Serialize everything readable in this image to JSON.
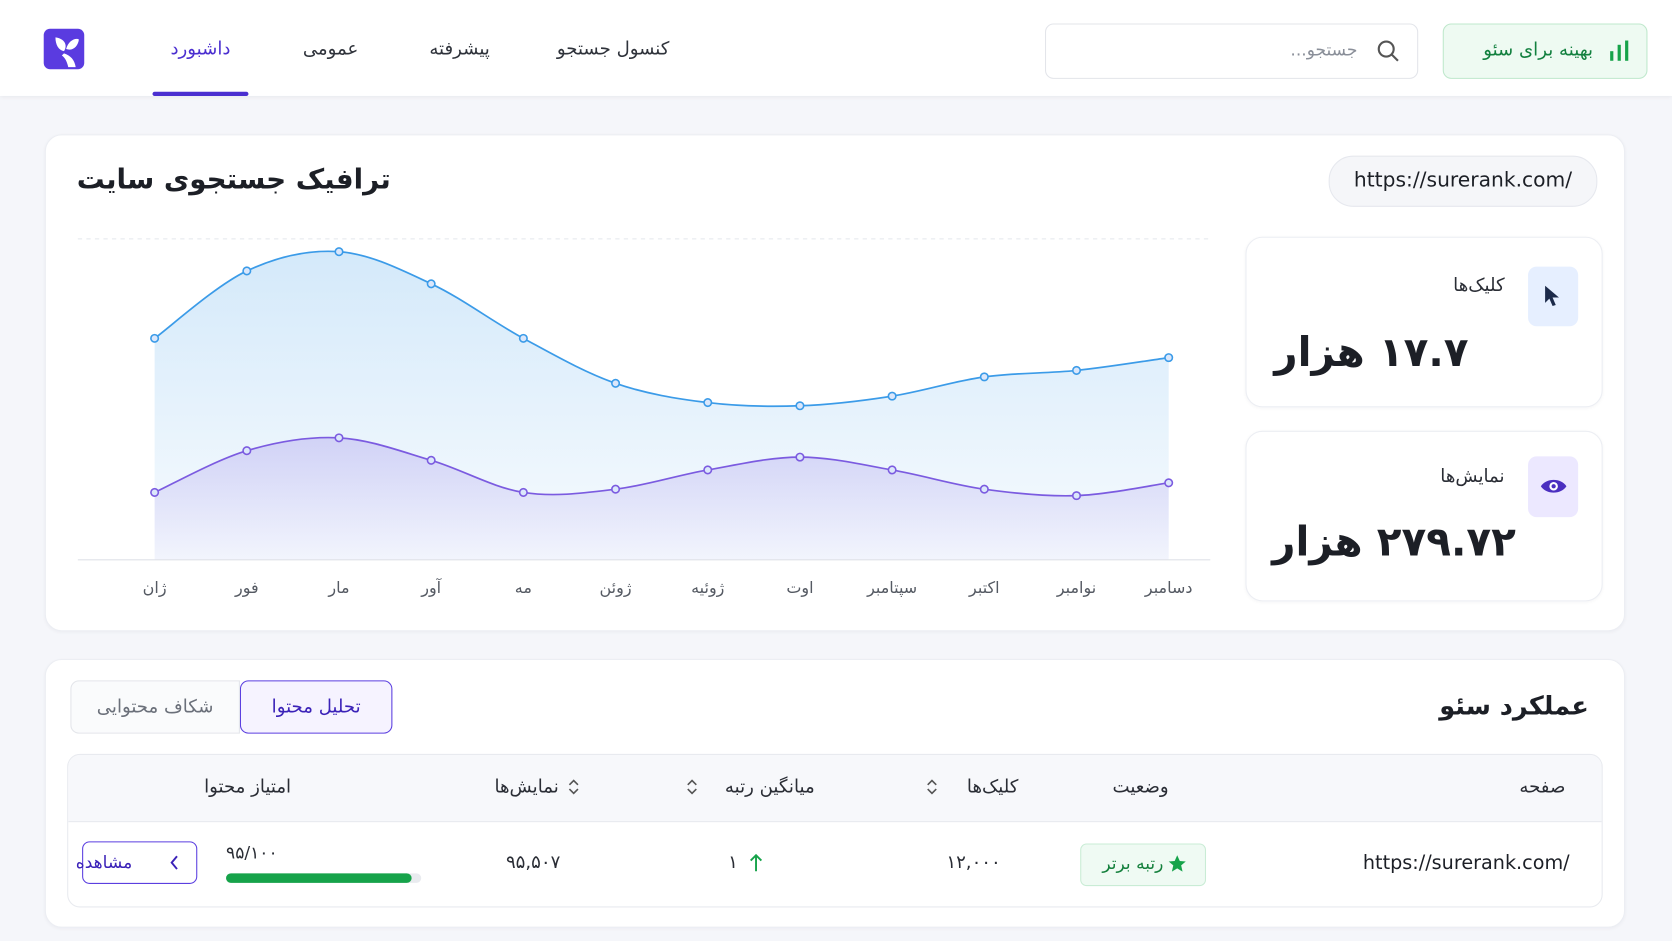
{
  "header": {
    "nav": [
      {
        "label": "داشبورد",
        "active": true
      },
      {
        "label": "عمومی"
      },
      {
        "label": "پیشرفته"
      },
      {
        "label": "کنسول جستجو"
      }
    ],
    "search_placeholder": "جستجو...",
    "button": "بهینه برای سئو"
  },
  "chart_data": {
    "type": "line",
    "title": "ترافیک جستجوی سایت",
    "url": "https://surerank.com/",
    "categories": [
      "ژان",
      "فور",
      "مار",
      "آور",
      "مه",
      "ژوئن",
      "ژوئیه",
      "اوت",
      "سپتامبر",
      "اکتبر",
      "نوامبر",
      "دسامبر"
    ],
    "series": [
      {
        "color": "#3b9be8",
        "values": [
          69,
          90,
          96,
          86,
          69,
          55,
          49,
          48,
          51,
          57,
          59,
          63
        ]
      },
      {
        "color": "#7b5be0",
        "values": [
          21,
          34,
          38,
          31,
          21,
          22,
          28,
          32,
          28,
          22,
          20,
          24
        ]
      }
    ],
    "ylim": [
      0,
      100
    ],
    "area": true
  },
  "stats": [
    {
      "label": "کلیک‌ها",
      "value": "۱۷.۷ هزار"
    },
    {
      "label": "نمایش‌ها",
      "value": "۲۷۹.۷۲ هزار"
    }
  ],
  "seo": {
    "title": "عملکرد سئو",
    "tabs": [
      {
        "label": "تحلیل محتوا",
        "active": true
      },
      {
        "label": "شکاف محتوایی"
      }
    ],
    "columns": [
      {
        "label": "صفحه"
      },
      {
        "label": "وضعیت"
      },
      {
        "label": "کلیک‌ها",
        "sortable": true
      },
      {
        "label": "میانگین رتبه",
        "sortable": true
      },
      {
        "label": "نمایش‌ها",
        "sortable": true
      },
      {
        "label": "امتیاز محتوا"
      }
    ],
    "rows": [
      {
        "page": "https://surerank.com/",
        "status": "رتبه برتر",
        "clicks": "۱۲,۰۰۰",
        "rank": "۱",
        "impressions": "۹۵,۵۰۷",
        "score": {
          "value": 95,
          "max": 100,
          "label": "۹۵/۱۰۰"
        },
        "action": "مشاهده"
      }
    ]
  }
}
